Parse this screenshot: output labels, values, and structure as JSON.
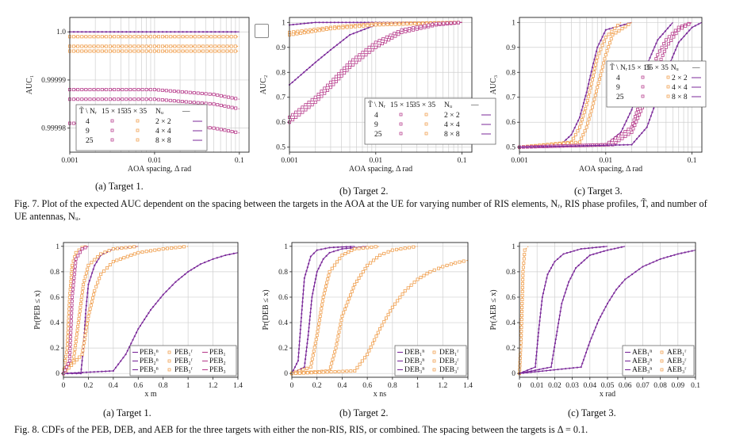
{
  "fig7": {
    "caption_label": "Fig. 7.",
    "caption_text": "Plot of the expected AUC dependent on the spacing between the targets in the AOA at the UE for varying number of RIS elements, Nᵣ, RIS phase profiles, T̃, and number of UE antennas, Nᵤ.",
    "legend_head": [
      "T̃ \\ Nᵣ",
      "15 × 15",
      "35 × 35",
      "Nᵤ",
      "—"
    ],
    "legend_rows": [
      "4",
      "9",
      "25"
    ],
    "legend_nu": [
      "2 × 2",
      "4 × 4",
      "8 × 8"
    ]
  },
  "fig8": {
    "caption_label": "Fig. 8.",
    "caption_text": "CDFs of the PEB, DEB, and AEB for the three targets with either the non-RIS, RIS, or combined. The spacing between the targets is Δ = 0.1."
  },
  "colors": {
    "purple": "#7b2a9a",
    "magenta": "#b8408e",
    "orange": "#f0a050"
  },
  "chart_data": [
    {
      "type": "line",
      "subcaption": "(a) Target 1.",
      "xlabel": "AOA spacing, Δ rad",
      "ylabel": "AUC₁",
      "xscale": "log",
      "xlim": [
        0.001,
        0.13
      ],
      "ylim": [
        0.999975,
        1.000003
      ],
      "xticks": [
        "0.001",
        "0.01",
        "0.1"
      ],
      "yticks": [
        "0.99998",
        "0.99999",
        "1.0"
      ],
      "legend": "bottom-left",
      "series": [
        {
          "style": "orange-sq",
          "x": [
            0.001,
            0.01,
            0.1
          ],
          "y": [
            0.999999,
            0.999999,
            0.999999
          ]
        },
        {
          "style": "orange-sq",
          "x": [
            0.001,
            0.01,
            0.1
          ],
          "y": [
            0.999997,
            0.999997,
            0.999997
          ]
        },
        {
          "style": "orange-sq",
          "x": [
            0.001,
            0.01,
            0.1
          ],
          "y": [
            0.999996,
            0.999996,
            0.999996
          ]
        },
        {
          "style": "purple",
          "x": [
            0.001,
            0.01,
            0.1
          ],
          "y": [
            1.0,
            1.0,
            1.0
          ]
        },
        {
          "style": "magenta-sq",
          "x": [
            0.001,
            0.01,
            0.05,
            0.1
          ],
          "y": [
            0.999988,
            0.999988,
            0.999987,
            0.999986
          ]
        },
        {
          "style": "magenta-sq",
          "x": [
            0.001,
            0.01,
            0.05,
            0.1
          ],
          "y": [
            0.999986,
            0.999986,
            0.999985,
            0.999984
          ]
        },
        {
          "style": "magenta-sq",
          "x": [
            0.001,
            0.01,
            0.05,
            0.1
          ],
          "y": [
            0.999981,
            0.999981,
            0.99998,
            0.999979
          ]
        }
      ]
    },
    {
      "type": "line",
      "subcaption": "(b) Target 2.",
      "xlabel": "AOA spacing, Δ rad",
      "ylabel": "AUC₂",
      "xscale": "log",
      "xlim": [
        0.001,
        0.13
      ],
      "ylim": [
        0.48,
        1.02
      ],
      "xticks": [
        "0.001",
        "0.01",
        "0.1"
      ],
      "yticks": [
        "0.5",
        "0.6",
        "0.7",
        "0.8",
        "0.9",
        "1"
      ],
      "legend": "bottom-right",
      "series": [
        {
          "style": "purple",
          "x": [
            0.001,
            0.002,
            0.005,
            0.01,
            0.1
          ],
          "y": [
            0.99,
            1,
            1,
            1,
            1
          ]
        },
        {
          "style": "purple",
          "x": [
            0.001,
            0.002,
            0.003,
            0.005,
            0.01,
            0.02,
            0.1
          ],
          "y": [
            0.75,
            0.84,
            0.89,
            0.95,
            0.99,
            1,
            1
          ]
        },
        {
          "style": "orange-sq",
          "x": [
            0.001,
            0.003,
            0.01,
            0.1
          ],
          "y": [
            0.96,
            0.98,
            0.995,
            1
          ]
        },
        {
          "style": "orange-sq",
          "x": [
            0.001,
            0.003,
            0.01,
            0.1
          ],
          "y": [
            0.95,
            0.975,
            0.99,
            1
          ]
        },
        {
          "style": "magenta-sq",
          "x": [
            0.001,
            0.002,
            0.003,
            0.005,
            0.01,
            0.02,
            0.05,
            0.1
          ],
          "y": [
            0.6,
            0.68,
            0.74,
            0.82,
            0.9,
            0.96,
            0.99,
            1
          ]
        },
        {
          "style": "magenta-sq",
          "x": [
            0.001,
            0.002,
            0.003,
            0.005,
            0.01,
            0.02,
            0.05,
            0.1
          ],
          "y": [
            0.62,
            0.7,
            0.76,
            0.84,
            0.92,
            0.97,
            0.995,
            1
          ]
        }
      ]
    },
    {
      "type": "line",
      "subcaption": "(c) Target 3.",
      "xlabel": "AOA spacing, Δ rad",
      "ylabel": "AUC₃",
      "xscale": "log",
      "xlim": [
        0.001,
        0.13
      ],
      "ylim": [
        0.48,
        1.02
      ],
      "xticks": [
        "0.001",
        "0.01",
        "0.1"
      ],
      "yticks": [
        "0.5",
        "0.6",
        "0.7",
        "0.8",
        "0.9",
        "1"
      ],
      "legend": "center-right",
      "series": [
        {
          "style": "purple",
          "x": [
            0.001,
            0.003,
            0.004,
            0.005,
            0.006,
            0.007,
            0.008,
            0.01,
            0.02
          ],
          "y": [
            0.5,
            0.51,
            0.55,
            0.62,
            0.72,
            0.82,
            0.9,
            0.97,
            1
          ]
        },
        {
          "style": "orange-sq",
          "x": [
            0.001,
            0.004,
            0.005,
            0.006,
            0.007,
            0.008,
            0.01,
            0.015
          ],
          "y": [
            0.5,
            0.52,
            0.58,
            0.67,
            0.77,
            0.86,
            0.94,
            1
          ]
        },
        {
          "style": "orange-sq",
          "x": [
            0.001,
            0.005,
            0.006,
            0.007,
            0.008,
            0.01,
            0.012,
            0.02
          ],
          "y": [
            0.5,
            0.52,
            0.58,
            0.66,
            0.74,
            0.87,
            0.95,
            1
          ]
        },
        {
          "style": "purple",
          "x": [
            0.001,
            0.01,
            0.015,
            0.02,
            0.025,
            0.03,
            0.04,
            0.06
          ],
          "y": [
            0.5,
            0.51,
            0.56,
            0.65,
            0.75,
            0.83,
            0.93,
            1
          ]
        },
        {
          "style": "magenta-sq",
          "x": [
            0.001,
            0.01,
            0.02,
            0.025,
            0.03,
            0.04,
            0.05,
            0.07,
            0.1
          ],
          "y": [
            0.5,
            0.51,
            0.58,
            0.68,
            0.76,
            0.87,
            0.93,
            0.98,
            1
          ]
        },
        {
          "style": "magenta-sq",
          "x": [
            0.001,
            0.012,
            0.02,
            0.03,
            0.04,
            0.05,
            0.07,
            0.1
          ],
          "y": [
            0.5,
            0.51,
            0.56,
            0.7,
            0.82,
            0.9,
            0.97,
            1
          ]
        },
        {
          "style": "purple",
          "x": [
            0.001,
            0.02,
            0.03,
            0.04,
            0.05,
            0.07,
            0.1,
            0.13
          ],
          "y": [
            0.5,
            0.51,
            0.58,
            0.7,
            0.8,
            0.92,
            0.98,
            1
          ]
        }
      ]
    },
    {
      "type": "line",
      "subcaption": "(a) Target 1.",
      "xlabel": "x m",
      "ylabel": "Pr(PEB ≤ x)",
      "xlim": [
        0,
        1.4
      ],
      "ylim": [
        -0.03,
        1.03
      ],
      "xticks": [
        "0",
        "0.2",
        "0.4",
        "0.6",
        "0.8",
        "1",
        "1.2",
        "1.4"
      ],
      "yticks": [
        "0",
        "0.2",
        "0.4",
        "0.6",
        "0.8",
        "1"
      ],
      "legend": "bottom-right",
      "legend_entries": [
        [
          "PEB₁ⁿ",
          "PEB₂ⁿ",
          "PEB₃ⁿ"
        ],
        [
          "PEB₁ʳ",
          "PEB₂ʳ",
          "PEB₃ʳ"
        ],
        [
          "PEB₁",
          "PEB₂",
          "PEB₃"
        ]
      ],
      "series": [
        {
          "style": "purple",
          "x": [
            0,
            0.14,
            0.16,
            0.18,
            0.2,
            0.25,
            0.3,
            0.4,
            0.6
          ],
          "y": [
            0,
            0,
            0.2,
            0.5,
            0.7,
            0.85,
            0.93,
            0.98,
            1
          ]
        },
        {
          "style": "purple",
          "x": [
            0,
            0.4,
            0.5,
            0.6,
            0.7,
            0.8,
            0.9,
            1.0,
            1.1,
            1.2,
            1.3,
            1.4
          ],
          "y": [
            0,
            0.02,
            0.15,
            0.35,
            0.5,
            0.62,
            0.72,
            0.8,
            0.86,
            0.9,
            0.93,
            0.95
          ]
        },
        {
          "style": "orange-sq",
          "x": [
            0,
            0.03,
            0.05,
            0.07,
            0.1,
            0.15,
            0.2
          ],
          "y": [
            0,
            0.2,
            0.6,
            0.85,
            0.95,
            0.99,
            1
          ]
        },
        {
          "style": "orange-sq",
          "x": [
            0,
            0.08,
            0.12,
            0.16,
            0.2,
            0.3,
            0.4,
            0.6
          ],
          "y": [
            0,
            0.1,
            0.4,
            0.7,
            0.85,
            0.94,
            0.98,
            1
          ]
        },
        {
          "style": "orange-sq",
          "x": [
            0,
            0.15,
            0.2,
            0.25,
            0.3,
            0.4,
            0.6,
            0.8,
            1.0
          ],
          "y": [
            0,
            0.15,
            0.45,
            0.65,
            0.78,
            0.88,
            0.95,
            0.98,
            1
          ]
        },
        {
          "style": "magenta-sq",
          "x": [
            0,
            0.05,
            0.07,
            0.1,
            0.15,
            0.2
          ],
          "y": [
            0,
            0.1,
            0.6,
            0.9,
            0.98,
            1
          ]
        }
      ]
    },
    {
      "type": "line",
      "subcaption": "(b) Target 2.",
      "xlabel": "x ns",
      "ylabel": "Pr(DEB ≤ x)",
      "xlim": [
        0,
        1.4
      ],
      "ylim": [
        -0.03,
        1.03
      ],
      "xticks": [
        "0",
        "0.2",
        "0.4",
        "0.6",
        "0.8",
        "1",
        "1.2",
        "1.4"
      ],
      "yticks": [
        "0",
        "0.2",
        "0.4",
        "0.6",
        "0.8",
        "1"
      ],
      "legend": "bottom-right",
      "legend_entries": [
        [
          "DEB₁ⁿ",
          "DEB₂ⁿ",
          "DEB₃ⁿ"
        ],
        [
          "DEB₁ʳ",
          "DEB₂ʳ",
          "DEB₃ʳ"
        ]
      ],
      "series": [
        {
          "style": "purple",
          "x": [
            0,
            0.05,
            0.08,
            0.1,
            0.15,
            0.2,
            0.3,
            0.5
          ],
          "y": [
            0,
            0.1,
            0.5,
            0.75,
            0.92,
            0.97,
            0.99,
            1
          ]
        },
        {
          "style": "purple",
          "x": [
            0,
            0.1,
            0.13,
            0.16,
            0.2,
            0.25,
            0.3,
            0.4,
            0.6
          ],
          "y": [
            0,
            0.05,
            0.3,
            0.6,
            0.8,
            0.9,
            0.95,
            0.98,
            1
          ]
        },
        {
          "style": "orange-sq",
          "x": [
            0,
            0.15,
            0.2,
            0.25,
            0.3,
            0.4,
            0.5,
            0.7
          ],
          "y": [
            0,
            0.05,
            0.3,
            0.6,
            0.8,
            0.93,
            0.98,
            1
          ]
        },
        {
          "style": "orange-sq",
          "x": [
            0,
            0.3,
            0.35,
            0.4,
            0.5,
            0.6,
            0.7,
            0.8,
            1.0
          ],
          "y": [
            0,
            0.02,
            0.2,
            0.45,
            0.7,
            0.85,
            0.93,
            0.97,
            1
          ]
        },
        {
          "style": "orange-sq",
          "x": [
            0,
            0.5,
            0.6,
            0.7,
            0.8,
            0.9,
            1.0,
            1.1,
            1.2,
            1.3,
            1.4
          ],
          "y": [
            0,
            0.02,
            0.15,
            0.35,
            0.52,
            0.65,
            0.74,
            0.8,
            0.84,
            0.87,
            0.89
          ]
        }
      ]
    },
    {
      "type": "line",
      "subcaption": "(c) Target 3.",
      "xlabel": "x rad",
      "ylabel": "Pr(AEB ≤ x)",
      "xlim": [
        0,
        0.1
      ],
      "ylim": [
        -0.03,
        1.03
      ],
      "xticks": [
        "0",
        "0.01",
        "0.02",
        "0.03",
        "0.04",
        "0.05",
        "0.06",
        "0.07",
        "0.08",
        "0.09",
        "0.1"
      ],
      "yticks": [
        "0",
        "0.2",
        "0.4",
        "0.6",
        "0.8",
        "1"
      ],
      "legend": "bottom-right",
      "legend_entries": [
        [
          "AEB₁ⁿ",
          "AEB₂ⁿ",
          "AEB₃ⁿ"
        ],
        [
          "AEB₁ʳ",
          "AEB₂ʳ",
          "AEB₃ʳ"
        ]
      ],
      "series": [
        {
          "style": "orange-sq",
          "x": [
            0,
            0.001,
            0.002,
            0.003,
            0.005
          ],
          "y": [
            0,
            0.3,
            0.8,
            0.97,
            1
          ]
        },
        {
          "style": "purple",
          "x": [
            0,
            0.009,
            0.011,
            0.013,
            0.016,
            0.02,
            0.025,
            0.035,
            0.05
          ],
          "y": [
            0,
            0.05,
            0.35,
            0.6,
            0.78,
            0.88,
            0.94,
            0.98,
            1
          ]
        },
        {
          "style": "purple",
          "x": [
            0,
            0.018,
            0.021,
            0.024,
            0.028,
            0.032,
            0.04,
            0.05,
            0.06
          ],
          "y": [
            0,
            0.05,
            0.3,
            0.55,
            0.72,
            0.83,
            0.93,
            0.97,
            1
          ]
        },
        {
          "style": "purple",
          "x": [
            0,
            0.035,
            0.04,
            0.045,
            0.05,
            0.055,
            0.06,
            0.07,
            0.08,
            0.09,
            0.1
          ],
          "y": [
            0,
            0.05,
            0.25,
            0.42,
            0.55,
            0.66,
            0.74,
            0.84,
            0.9,
            0.94,
            0.97
          ]
        }
      ]
    }
  ]
}
